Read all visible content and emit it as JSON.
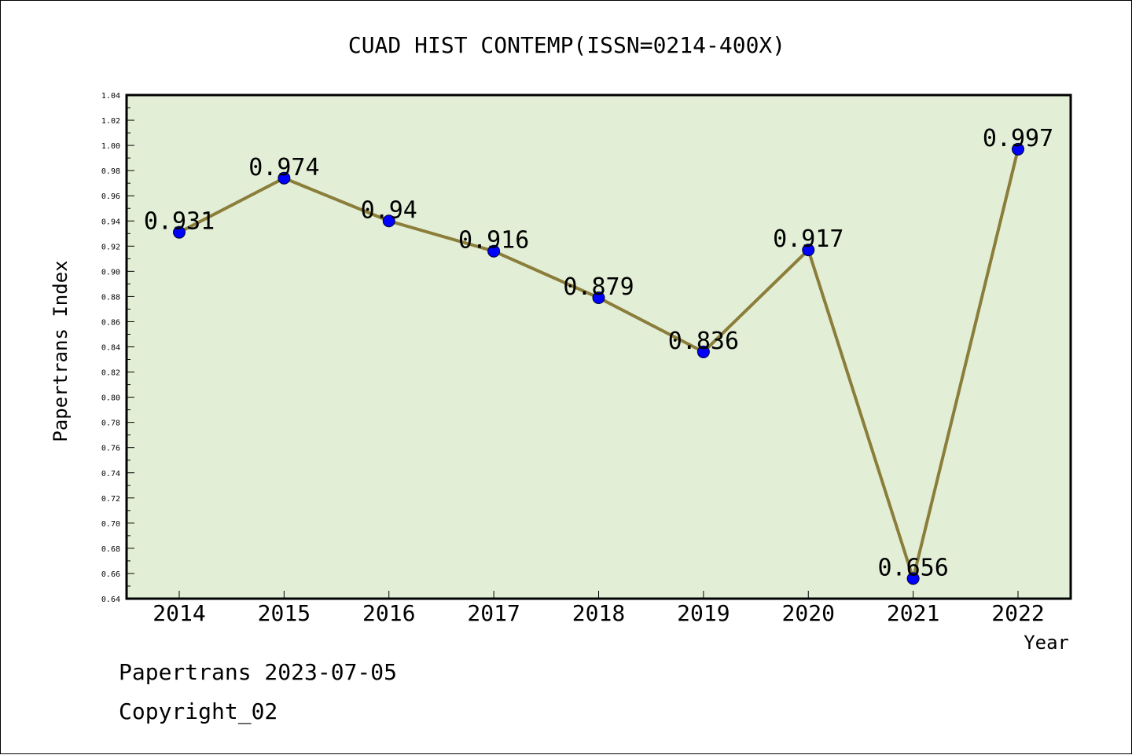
{
  "chart_data": {
    "type": "line",
    "title": "CUAD HIST CONTEMP(ISSN=0214-400X)",
    "xlabel": "Year",
    "ylabel": "Papertrans Index",
    "categories": [
      "2014",
      "2015",
      "2016",
      "2017",
      "2018",
      "2019",
      "2020",
      "2021",
      "2022"
    ],
    "values": [
      0.931,
      0.974,
      0.94,
      0.916,
      0.879,
      0.836,
      0.917,
      0.656,
      0.997
    ],
    "data_labels": [
      "0.931",
      "0.974",
      "0.94",
      "0.916",
      "0.879",
      "0.836",
      "0.917",
      "0.656",
      "0.997"
    ],
    "ylim": [
      0.64,
      1.04
    ],
    "yticks": [
      "0.64",
      "0.66",
      "0.68",
      "0.70",
      "0.72",
      "0.74",
      "0.76",
      "0.78",
      "0.80",
      "0.82",
      "0.84",
      "0.86",
      "0.88",
      "0.90",
      "0.92",
      "0.94",
      "0.96",
      "0.98",
      "1.00",
      "1.02",
      "1.04"
    ],
    "grid": false,
    "colors": {
      "plot_background": "#e2efd6",
      "line": "#8b7d3a",
      "marker": "#0000ff"
    }
  },
  "footer": {
    "line1": "Papertrans 2023-07-05",
    "line2": "Copyright_02"
  }
}
